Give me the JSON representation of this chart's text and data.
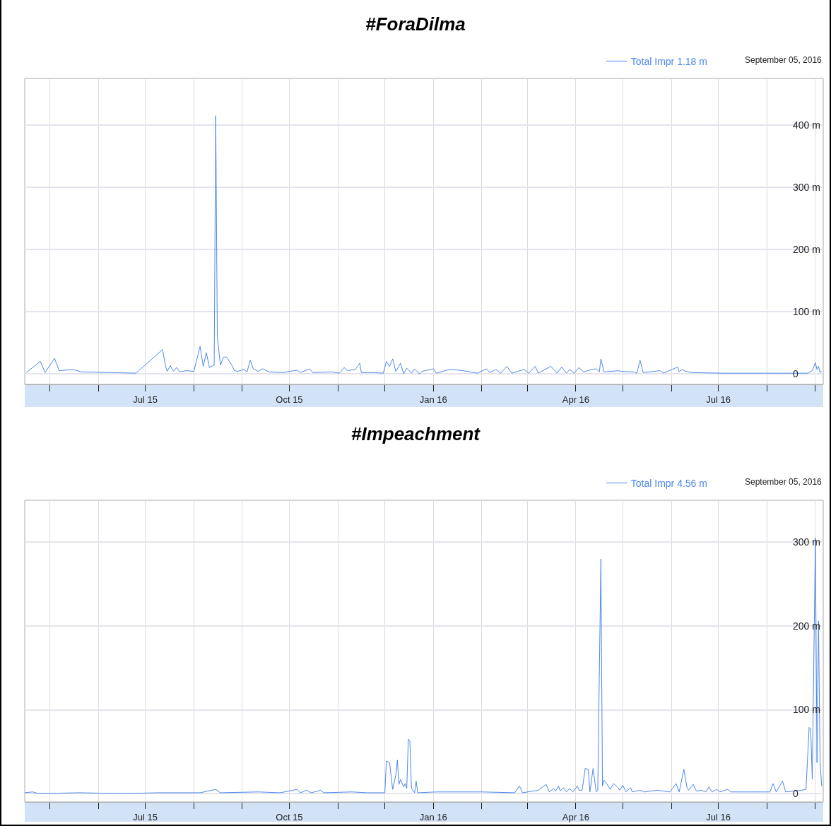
{
  "chart_data": [
    {
      "type": "line",
      "title": "#ForaDilma",
      "annotations": [
        "September 05, 2016"
      ],
      "legend": "top right",
      "grid": true,
      "xlim": [
        "2015-04-15",
        "2016-09-06"
      ],
      "ylim": [
        -17,
        475
      ],
      "xticks": [
        {
          "value": "2015-05-01",
          "label": null
        },
        {
          "value": "2015-06-01",
          "label": null
        },
        {
          "value": "2015-07-01",
          "label": "Jul 15"
        },
        {
          "value": "2015-08-01",
          "label": null
        },
        {
          "value": "2015-09-01",
          "label": null
        },
        {
          "value": "2015-10-01",
          "label": "Oct 15"
        },
        {
          "value": "2015-11-01",
          "label": null
        },
        {
          "value": "2015-12-01",
          "label": null
        },
        {
          "value": "2016-01-01",
          "label": "Jan 16"
        },
        {
          "value": "2016-02-01",
          "label": null
        },
        {
          "value": "2016-03-01",
          "label": null
        },
        {
          "value": "2016-04-01",
          "label": "Apr 16"
        },
        {
          "value": "2016-05-01",
          "label": null
        },
        {
          "value": "2016-06-01",
          "label": null
        },
        {
          "value": "2016-07-01",
          "label": "Jul 16"
        },
        {
          "value": "2016-08-01",
          "label": null
        },
        {
          "value": "2016-09-01",
          "label": null
        }
      ],
      "yticks": [
        0,
        {
          "value": 100,
          "label": "100 m"
        },
        {
          "value": 200,
          "label": "200 m"
        },
        {
          "value": 300,
          "label": "300 m"
        },
        {
          "value": 400,
          "label": "400 m"
        }
      ],
      "series": [
        {
          "name": "Total Impr 1.18 m",
          "color": "#4d87ec",
          "x": [
            "2015-04-16",
            "2015-04-25",
            "2015-04-28",
            "2015-05-04",
            "2015-05-07",
            "2015-05-16",
            "2015-05-21",
            "2015-06-10",
            "2015-06-25",
            "2015-07-12",
            "2015-07-14",
            "2015-07-15",
            "2015-07-17",
            "2015-07-19",
            "2015-07-21",
            "2015-07-23",
            "2015-07-27",
            "2015-08-01",
            "2015-08-05",
            "2015-08-07",
            "2015-08-09",
            "2015-08-11",
            "2015-08-14",
            "2015-08-15",
            "2015-08-16",
            "2015-08-18",
            "2015-08-20",
            "2015-08-22",
            "2015-08-25",
            "2015-08-27",
            "2015-08-29",
            "2015-09-02",
            "2015-09-04",
            "2015-09-06",
            "2015-09-08",
            "2015-09-11",
            "2015-09-14",
            "2015-09-18",
            "2015-09-27",
            "2015-10-06",
            "2015-10-08",
            "2015-10-14",
            "2015-10-16",
            "2015-10-28",
            "2015-11-02",
            "2015-11-05",
            "2015-11-07",
            "2015-11-12",
            "2015-11-13",
            "2015-11-15",
            "2015-11-16",
            "2015-11-23",
            "2015-11-30",
            "2015-12-02",
            "2015-12-04",
            "2015-12-06",
            "2015-12-08",
            "2015-12-09",
            "2015-12-11",
            "2015-12-13",
            "2015-12-15",
            "2015-12-18",
            "2015-12-20",
            "2015-12-23",
            "2015-12-25",
            "2015-12-30",
            "2016-01-01",
            "2016-01-03",
            "2016-01-10",
            "2016-01-13",
            "2016-01-20",
            "2016-01-29",
            "2016-02-04",
            "2016-02-06",
            "2016-02-10",
            "2016-02-13",
            "2016-02-17",
            "2016-02-20",
            "2016-02-28",
            "2016-03-02",
            "2016-03-06",
            "2016-03-08",
            "2016-03-16",
            "2016-03-20",
            "2016-03-23",
            "2016-03-26",
            "2016-03-28",
            "2016-03-31",
            "2016-04-03",
            "2016-04-06",
            "2016-04-11",
            "2016-04-14",
            "2016-04-16",
            "2016-04-17",
            "2016-04-19",
            "2016-04-28",
            "2016-04-30",
            "2016-05-08",
            "2016-05-10",
            "2016-05-12",
            "2016-05-14",
            "2016-05-25",
            "2016-05-27",
            "2016-06-05",
            "2016-06-06",
            "2016-06-08",
            "2016-06-10",
            "2016-06-14",
            "2016-07-03",
            "2016-07-30",
            "2016-08-22",
            "2016-08-27",
            "2016-08-30",
            "2016-09-01",
            "2016-09-02",
            "2016-09-03",
            "2016-09-04",
            "2016-09-05"
          ],
          "values": [
            2,
            20,
            2,
            25,
            5,
            7,
            3,
            2,
            1,
            39,
            12,
            4,
            13,
            4,
            10,
            3,
            5,
            4,
            44,
            12,
            34,
            10,
            14,
            415,
            60,
            14,
            27,
            27,
            15,
            5,
            4,
            7,
            3,
            22,
            8,
            4,
            8,
            3,
            2,
            6,
            2,
            8,
            2,
            3,
            1,
            10,
            5,
            7,
            10,
            17,
            2,
            2,
            1,
            20,
            12,
            24,
            4,
            8,
            17,
            0,
            9,
            1,
            8,
            0,
            4,
            7,
            8,
            1,
            6,
            7,
            5,
            1,
            8,
            2,
            7,
            1,
            12,
            1,
            7,
            1,
            12,
            1,
            12,
            1,
            11,
            1,
            7,
            1,
            10,
            3,
            7,
            8,
            3,
            24,
            3,
            5,
            4,
            3,
            1,
            22,
            2,
            5,
            1,
            11,
            3,
            7,
            4,
            2,
            1,
            1,
            1,
            1,
            5,
            18,
            7,
            12,
            2,
            4
          ]
        }
      ]
    },
    {
      "type": "line",
      "title": "#Impeachment",
      "annotations": [
        "September 05, 2016"
      ],
      "legend": "top right",
      "grid": true,
      "xlim": [
        "2015-04-15",
        "2016-09-06"
      ],
      "ylim": [
        -10,
        350
      ],
      "xticks": [
        {
          "value": "2015-05-01",
          "label": null
        },
        {
          "value": "2015-06-01",
          "label": null
        },
        {
          "value": "2015-07-01",
          "label": "Jul 15"
        },
        {
          "value": "2015-08-01",
          "label": null
        },
        {
          "value": "2015-09-01",
          "label": null
        },
        {
          "value": "2015-10-01",
          "label": "Oct 15"
        },
        {
          "value": "2015-11-01",
          "label": null
        },
        {
          "value": "2015-12-01",
          "label": null
        },
        {
          "value": "2016-01-01",
          "label": "Jan 16"
        },
        {
          "value": "2016-02-01",
          "label": null
        },
        {
          "value": "2016-03-01",
          "label": null
        },
        {
          "value": "2016-04-01",
          "label": "Apr 16"
        },
        {
          "value": "2016-05-01",
          "label": null
        },
        {
          "value": "2016-06-01",
          "label": null
        },
        {
          "value": "2016-07-01",
          "label": "Jul 16"
        },
        {
          "value": "2016-08-01",
          "label": null
        },
        {
          "value": "2016-09-01",
          "label": null
        }
      ],
      "yticks": [
        0,
        {
          "value": 100,
          "label": "100 m"
        },
        {
          "value": 200,
          "label": "200 m"
        },
        {
          "value": 300,
          "label": "300 m"
        }
      ],
      "series": [
        {
          "name": "Total Impr 4.56 m",
          "color": "#4d87ec",
          "x": [
            "2015-04-15",
            "2015-04-20",
            "2015-04-24",
            "2015-05-20",
            "2015-06-15",
            "2015-07-10",
            "2015-08-05",
            "2015-08-15",
            "2015-08-18",
            "2015-09-11",
            "2015-09-25",
            "2015-09-28",
            "2015-10-06",
            "2015-10-08",
            "2015-10-12",
            "2015-10-15",
            "2015-10-21",
            "2015-10-23",
            "2015-11-10",
            "2015-11-20",
            "2015-12-01",
            "2015-12-02",
            "2015-12-04",
            "2015-12-06",
            "2015-12-08",
            "2015-12-09",
            "2015-12-10",
            "2015-12-11",
            "2015-12-13",
            "2015-12-14",
            "2015-12-15",
            "2015-12-16",
            "2015-12-17",
            "2015-12-18",
            "2015-12-20",
            "2015-12-21",
            "2015-12-22",
            "2016-01-03",
            "2016-02-01",
            "2016-02-22",
            "2016-02-25",
            "2016-02-27",
            "2016-03-08",
            "2016-03-13",
            "2016-03-15",
            "2016-03-18",
            "2016-03-19",
            "2016-03-21",
            "2016-03-22",
            "2016-03-24",
            "2016-03-26",
            "2016-03-28",
            "2016-03-30",
            "2016-04-02",
            "2016-04-03",
            "2016-04-05",
            "2016-04-07",
            "2016-04-09",
            "2016-04-10",
            "2016-04-12",
            "2016-04-14",
            "2016-04-15",
            "2016-04-17",
            "2016-04-18",
            "2016-04-19",
            "2016-04-21",
            "2016-04-23",
            "2016-04-25",
            "2016-04-28",
            "2016-04-29",
            "2016-05-01",
            "2016-05-03",
            "2016-05-06",
            "2016-05-07",
            "2016-05-12",
            "2016-05-15",
            "2016-05-23",
            "2016-05-31",
            "2016-06-04",
            "2016-06-06",
            "2016-06-09",
            "2016-06-11",
            "2016-06-12",
            "2016-06-15",
            "2016-06-17",
            "2016-06-20",
            "2016-06-23",
            "2016-06-25",
            "2016-06-27",
            "2016-06-30",
            "2016-07-02",
            "2016-07-07",
            "2016-07-09",
            "2016-07-19",
            "2016-08-03",
            "2016-08-05",
            "2016-08-07",
            "2016-08-11",
            "2016-08-13",
            "2016-08-23",
            "2016-08-26",
            "2016-08-28",
            "2016-08-29",
            "2016-08-30",
            "2016-09-01",
            "2016-09-02",
            "2016-09-03",
            "2016-09-04",
            "2016-09-05"
          ],
          "values": [
            1,
            2,
            0,
            1,
            0,
            1,
            1,
            5,
            1,
            2,
            1,
            2,
            5,
            1,
            4,
            1,
            4,
            1,
            2,
            1,
            1,
            39,
            37,
            5,
            22,
            40,
            11,
            17,
            8,
            12,
            6,
            65,
            63,
            6,
            1,
            15,
            1,
            2,
            2,
            1,
            9,
            1,
            4,
            11,
            2,
            6,
            3,
            9,
            3,
            7,
            2,
            6,
            2,
            9,
            4,
            4,
            30,
            29,
            2,
            30,
            2,
            4,
            280,
            9,
            16,
            11,
            5,
            12,
            7,
            4,
            10,
            2,
            7,
            2,
            4,
            2,
            4,
            2,
            12,
            2,
            29,
            7,
            4,
            11,
            3,
            4,
            2,
            8,
            2,
            5,
            2,
            5,
            2,
            2,
            2,
            12,
            2,
            15,
            2,
            4,
            5,
            79,
            77,
            17,
            305,
            37,
            206,
            37,
            9
          ]
        }
      ]
    }
  ]
}
